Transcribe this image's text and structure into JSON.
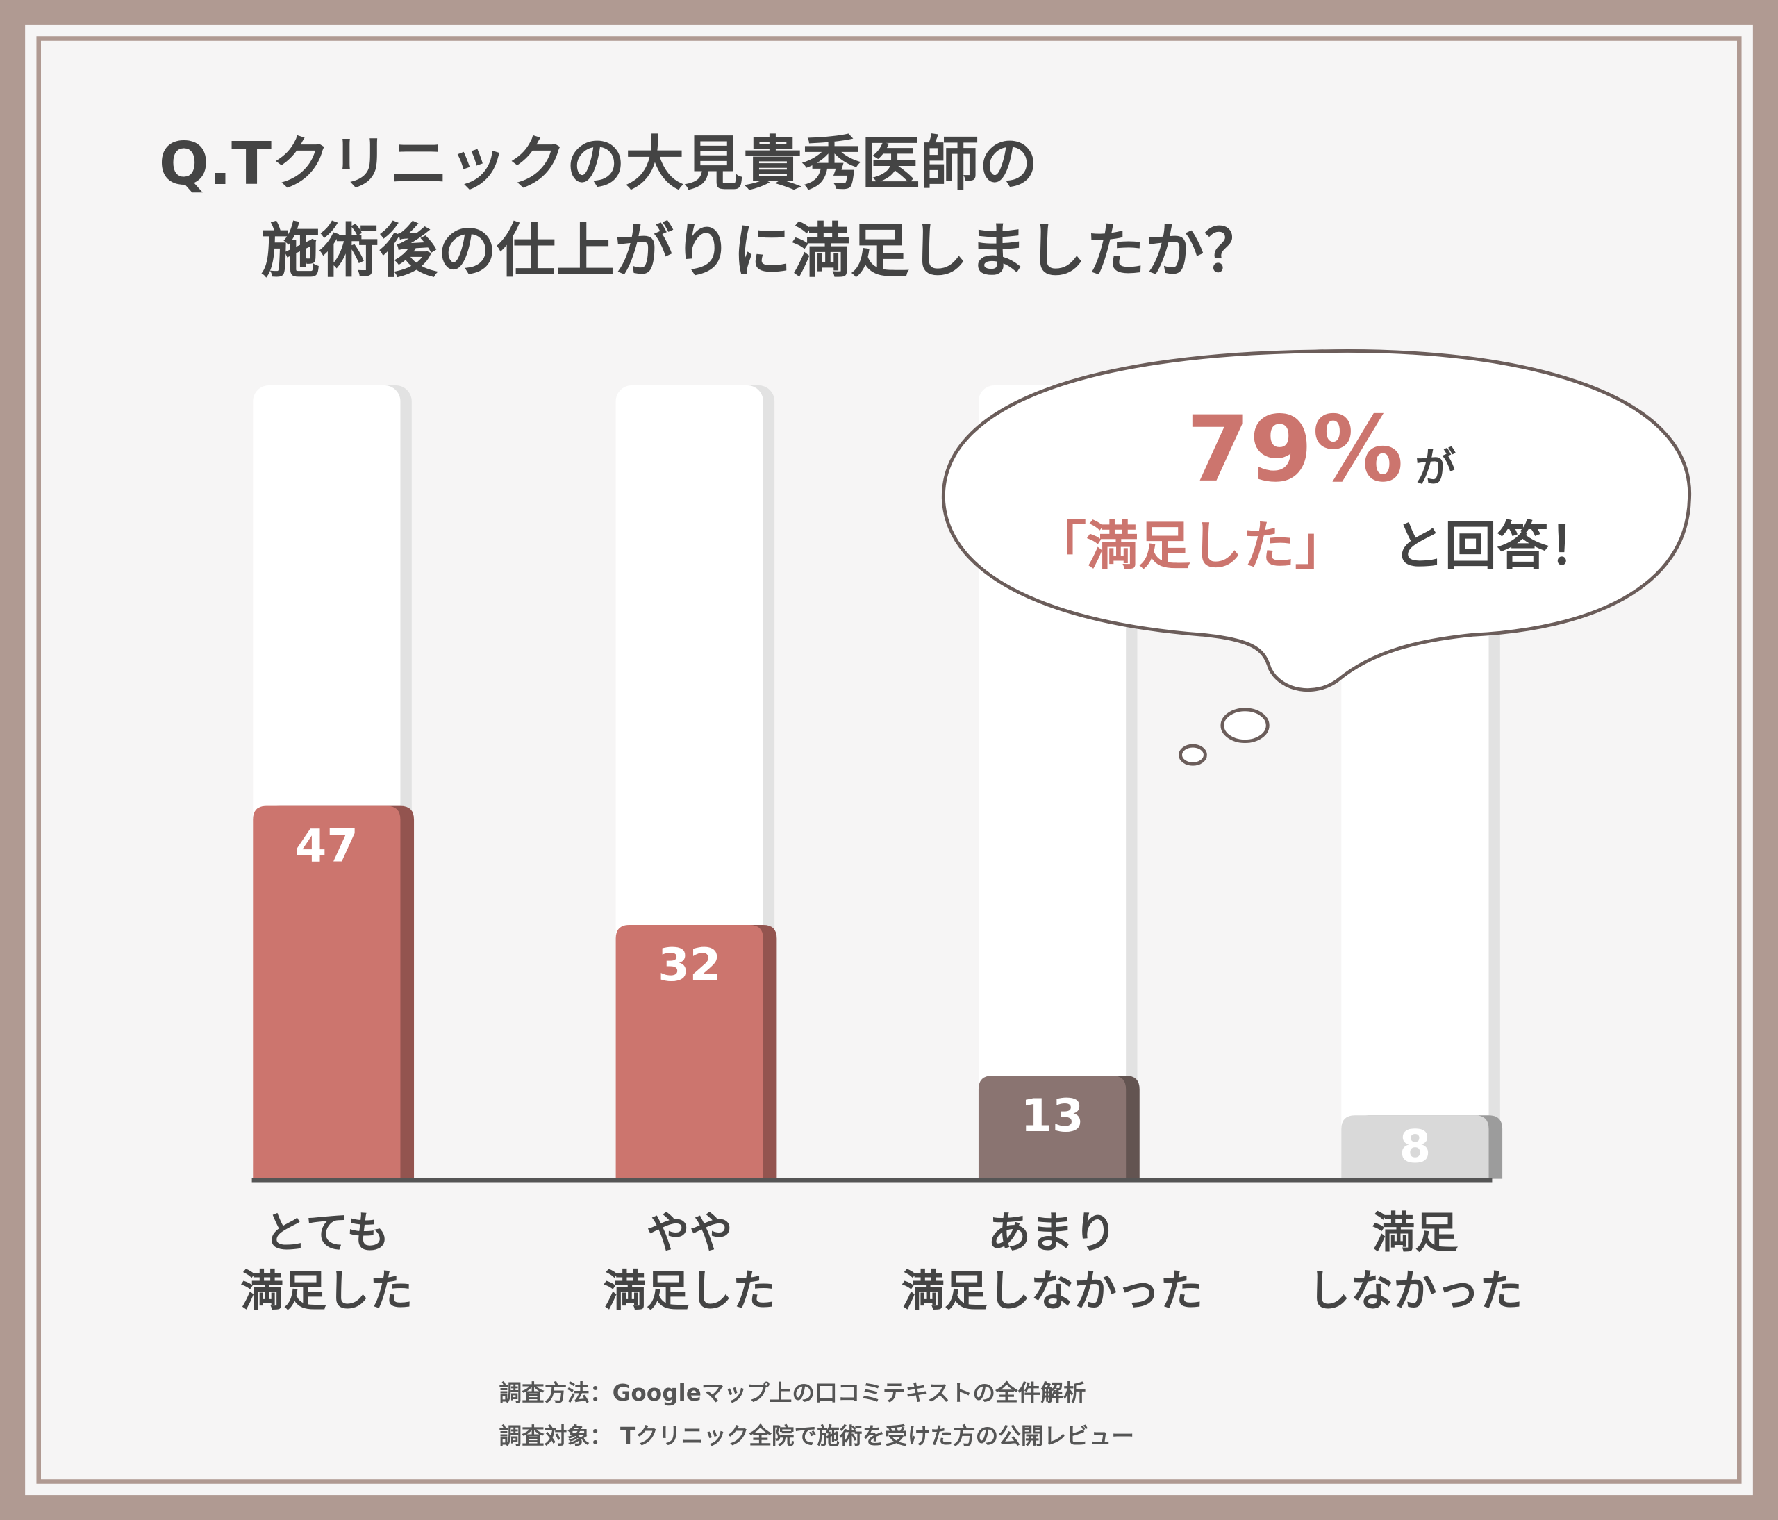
{
  "chart_data": {
    "type": "bar",
    "title": [
      "Q.Tクリニックの大見貴秀医師の",
      "施術後の仕上がりに満足しましたか？"
    ],
    "categories": [
      "とても\n満足した",
      "やや\n満足した",
      "あまり\n満足しなかった",
      "満足\nしなかった"
    ],
    "values": [
      47,
      32,
      13,
      8
    ],
    "colors": [
      "#cc756e",
      "#cc756e",
      "#8a7471",
      "#d9d9d9"
    ],
    "ylim": [
      0,
      100
    ],
    "annotation": {
      "percent": "79%",
      "particle": "が",
      "highlight": "「満足した」",
      "rest": "と回答！"
    },
    "notes": [
      "調査方法：Googleマップ上の口コミテキストの全件解析",
      "調査対象： Tクリニック全院で施術を受けた方の公開レビュー"
    ]
  }
}
